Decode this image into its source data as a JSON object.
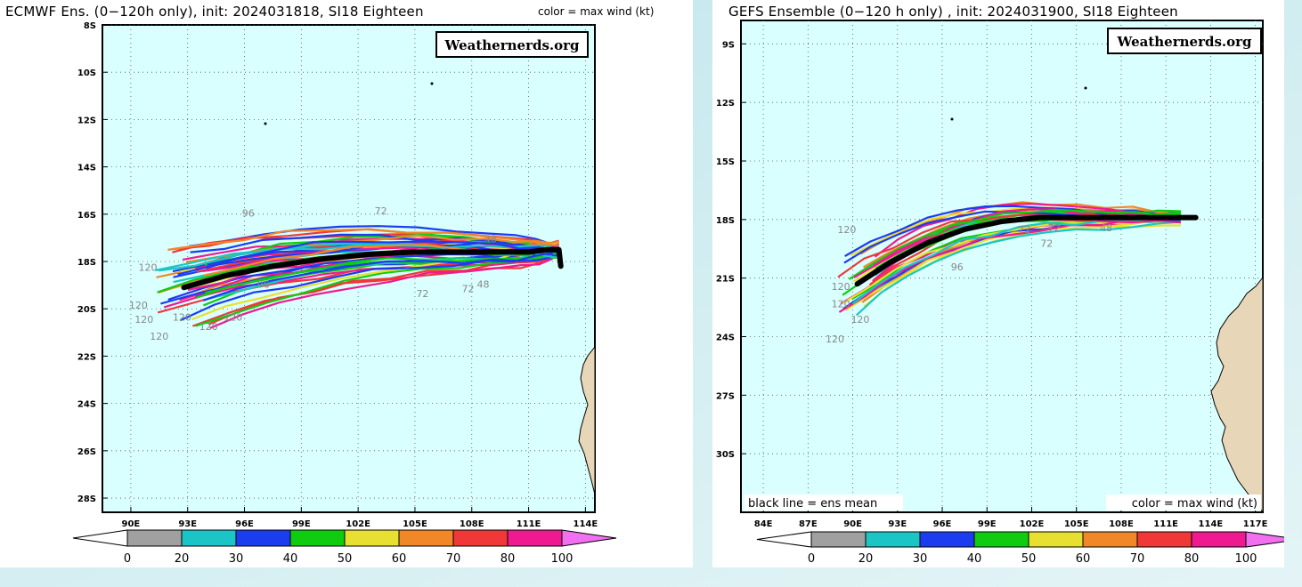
{
  "brand_text": "Weathernerds.org",
  "colorbar": {
    "ticks": [
      "0",
      "20",
      "30",
      "40",
      "50",
      "60",
      "70",
      "80",
      "100"
    ],
    "colors": [
      "#ffffff",
      "#a0a0a0",
      "#1cc5c5",
      "#1c3cf0",
      "#10cc10",
      "#e8e030",
      "#f08828",
      "#f03838",
      "#f01a90",
      "#f070f0"
    ]
  },
  "panels": [
    {
      "title": "ECMWF Ens. (0−120h only), init: 2024031818, SI18 Eighteen",
      "subtitle": "color = max wind (kt)",
      "bottom_left_label": "",
      "bottom_right_label": "",
      "lat_labels": [
        "8S",
        "10S",
        "12S",
        "14S",
        "16S",
        "18S",
        "20S",
        "22S",
        "24S",
        "26S",
        "28S"
      ],
      "lon_labels": [
        "90E",
        "93E",
        "96E",
        "99E",
        "102E",
        "105E",
        "108E",
        "111E",
        "114E"
      ],
      "lat_range": [
        -8,
        -28.6
      ],
      "lon_range": [
        88.5,
        114.5
      ],
      "ens_mean": {
        "lon": [
          92.8,
          95,
          97.5,
          100,
          102.5,
          105,
          107.5,
          109.5,
          111,
          112,
          112.6,
          112.7
        ],
        "lat": [
          -19.1,
          -18.6,
          -18.2,
          -17.9,
          -17.7,
          -17.6,
          -17.6,
          -17.6,
          -17.6,
          -17.5,
          -17.5,
          -18.2
        ]
      },
      "hour_labels": [
        {
          "t": "120",
          "lon": 90.4,
          "lat": -20.0
        },
        {
          "t": "120",
          "lon": 90.7,
          "lat": -20.6
        },
        {
          "t": "120",
          "lon": 91.5,
          "lat": -21.3
        },
        {
          "t": "120",
          "lon": 92.7,
          "lat": -20.5
        },
        {
          "t": "120",
          "lon": 94.1,
          "lat": -20.9
        },
        {
          "t": "120",
          "lon": 95.4,
          "lat": -20.5
        },
        {
          "t": "120",
          "lon": 90.9,
          "lat": -18.4
        },
        {
          "t": "96",
          "lon": 96.2,
          "lat": -16.1
        },
        {
          "t": "72",
          "lon": 103.2,
          "lat": -16.0
        },
        {
          "t": "72",
          "lon": 105.4,
          "lat": -19.5
        },
        {
          "t": "72",
          "lon": 107.8,
          "lat": -19.3
        },
        {
          "t": "48",
          "lon": 108.6,
          "lat": -19.1
        },
        {
          "t": "48",
          "lon": 109.0,
          "lat": -17.2
        },
        {
          "t": "96",
          "lon": 97.0,
          "lat": -19.1
        }
      ]
    },
    {
      "title": "GEFS Ensemble (0−120 h only) , init: 2024031900, SI18 Eighteen",
      "subtitle": "",
      "bottom_left_label": "black line = ens mean",
      "bottom_right_label": "color = max wind (kt)",
      "lat_labels": [
        "9S",
        "12S",
        "15S",
        "18S",
        "21S",
        "24S",
        "27S",
        "30S"
      ],
      "lon_labels": [
        "84E",
        "87E",
        "90E",
        "93E",
        "96E",
        "99E",
        "102E",
        "105E",
        "108E",
        "111E",
        "114E",
        "117E"
      ],
      "lat_range": [
        -7.8,
        -33
      ],
      "lon_range": [
        82.5,
        117.5
      ],
      "ens_mean": {
        "lon": [
          90.3,
          92.5,
          95,
          97.5,
          100,
          102.5,
          105,
          107.5,
          110,
          112,
          113
        ],
        "lat": [
          -21.3,
          -20.2,
          -19.2,
          -18.5,
          -18.1,
          -17.9,
          -17.9,
          -17.9,
          -17.9,
          -17.9,
          -17.9
        ]
      },
      "hour_labels": [
        {
          "t": "120",
          "lon": 89.2,
          "lat": -22.5
        },
        {
          "t": "120",
          "lon": 88.8,
          "lat": -24.3
        },
        {
          "t": "120",
          "lon": 90.5,
          "lat": -23.3
        },
        {
          "t": "120",
          "lon": 89.2,
          "lat": -21.6
        },
        {
          "t": "120",
          "lon": 89.6,
          "lat": -18.7
        },
        {
          "t": "72",
          "lon": 103.0,
          "lat": -19.4
        },
        {
          "t": "72",
          "lon": 103.5,
          "lat": -18.6
        },
        {
          "t": "48",
          "lon": 107.0,
          "lat": -18.6
        },
        {
          "t": "96",
          "lon": 97.0,
          "lat": -20.6
        },
        {
          "t": "72",
          "lon": 101.5,
          "lat": -18.7
        }
      ]
    }
  ]
}
